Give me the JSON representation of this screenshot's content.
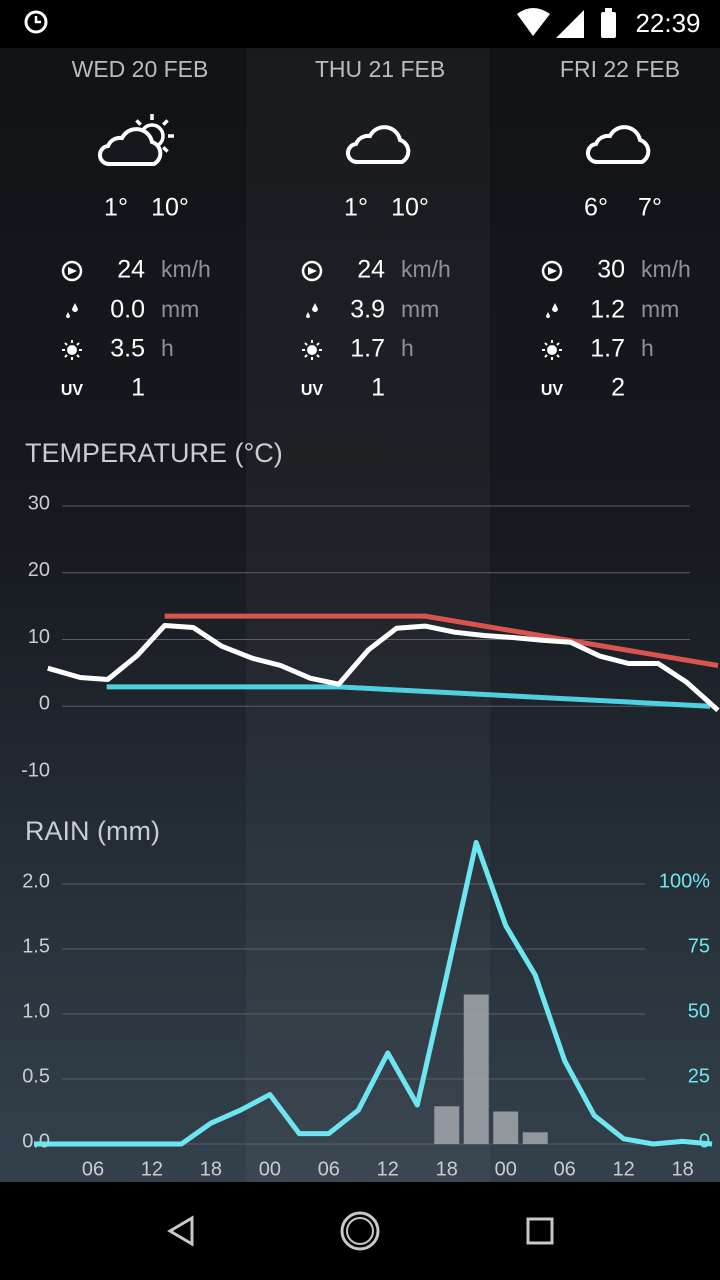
{
  "status_bar": {
    "time": "22:39"
  },
  "days": [
    {
      "date": "WED 20 FEB",
      "min": "1°",
      "max": "10°",
      "wind": "24",
      "wind_unit": "km/h",
      "rain": "0.0",
      "rain_unit": "mm",
      "sun": "3.5",
      "sun_unit": "h",
      "uv_label": "UV",
      "uv": "1"
    },
    {
      "date": "THU 21 FEB",
      "min": "1°",
      "max": "10°",
      "wind": "24",
      "wind_unit": "km/h",
      "rain": "3.9",
      "rain_unit": "mm",
      "sun": "1.7",
      "sun_unit": "h",
      "uv_label": "UV",
      "uv": "1"
    },
    {
      "date": "FRI 22 FEB",
      "min": "6°",
      "max": "7°",
      "wind": "30",
      "wind_unit": "km/h",
      "rain": "1.2",
      "rain_unit": "mm",
      "sun": "1.7",
      "sun_unit": "h",
      "uv_label": "UV",
      "uv": "2"
    }
  ],
  "chart_data": [
    {
      "type": "line",
      "title": "TEMPERATURE (°C)",
      "xlim": [
        0,
        69.6
      ],
      "ylim": [
        -10,
        30
      ],
      "yticks": [
        30,
        20,
        10,
        0,
        -10
      ],
      "grid": true,
      "series": [
        {
          "color": "#d9534f",
          "x": [
            13.3,
            39.8,
            69.6
          ],
          "values": [
            13.5,
            13.5,
            6.1
          ]
        },
        {
          "color": "#4fd0e0",
          "x": [
            7.4,
            31.0,
            68.8
          ],
          "values": [
            2.9,
            2.9,
            0
          ]
        },
        {
          "color": "#ffffff",
          "x": [
            1.4,
            4.7,
            7.5,
            10.5,
            13.3,
            16.2,
            19.1,
            22.2,
            25.1,
            28.1,
            31.0,
            34.0,
            36.9,
            39.8,
            42.8,
            45.8,
            48.7,
            51.7,
            54.6,
            57.6,
            60.5,
            63.5,
            66.4,
            69.6
          ],
          "values": [
            5.7,
            4.3,
            4.0,
            7.6,
            12.1,
            11.8,
            9.0,
            7.2,
            6.1,
            4.2,
            3.3,
            8.4,
            11.7,
            12.0,
            11.1,
            10.6,
            10.3,
            9.9,
            9.6,
            7.5,
            6.4,
            6.4,
            3.6,
            -0.6
          ]
        }
      ]
    },
    {
      "type": "combo",
      "title": "RAIN (mm)",
      "xlim": [
        0,
        69.6
      ],
      "ylim": [
        0,
        2.3
      ],
      "y2lim": [
        0,
        115
      ],
      "grid": true,
      "yticks": [
        {
          "value": 2,
          "label": "2.0"
        },
        {
          "value": 1.5,
          "label": "1.5"
        },
        {
          "value": 1,
          "label": "1.0"
        },
        {
          "value": 0.5,
          "label": "0.5"
        },
        {
          "value": 0,
          "label": "0.0"
        }
      ],
      "y2ticks": [
        {
          "value": 100,
          "label": "100%"
        },
        75,
        50,
        25,
        0
      ],
      "xticks": [
        {
          "value": 6,
          "label": "06"
        },
        12,
        18,
        {
          "value": 24,
          "label": "00"
        },
        {
          "value": 30,
          "label": "06"
        },
        {
          "value": 36,
          "label": "12"
        },
        {
          "value": 42,
          "label": "18"
        },
        {
          "value": 48,
          "label": "00"
        },
        {
          "value": 54,
          "label": "06"
        },
        {
          "value": 60,
          "label": "12"
        },
        {
          "value": 66,
          "label": "18"
        }
      ],
      "bars": {
        "color": "#a3a7ad",
        "x": [
          42,
          45,
          48,
          51
        ],
        "values": [
          0.29,
          1.15,
          0.25,
          0.09
        ]
      },
      "series": [
        {
          "color": "#6ee6f2",
          "axis": "y2",
          "x": [
            0,
            3,
            6,
            9,
            12,
            15,
            18,
            21,
            24,
            27,
            30,
            33,
            36,
            39,
            42,
            45,
            48,
            51,
            54,
            57,
            60,
            63,
            66,
            69
          ],
          "values": [
            0,
            0,
            0,
            0,
            0,
            0,
            8,
            13,
            19,
            4,
            4,
            13,
            35,
            15,
            65,
            116,
            84,
            65,
            32,
            11,
            2,
            0,
            1,
            0
          ]
        }
      ]
    }
  ]
}
